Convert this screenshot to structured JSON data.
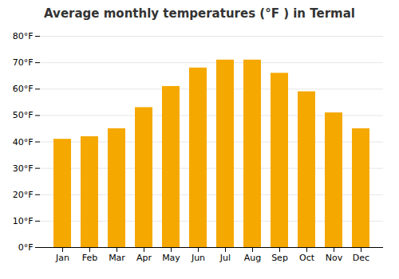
{
  "chart_data": {
    "type": "bar",
    "title": "Average monthly temperatures (°F ) in Termal",
    "categories": [
      "Jan",
      "Feb",
      "Mar",
      "Apr",
      "May",
      "Jun",
      "Jul",
      "Aug",
      "Sep",
      "Oct",
      "Nov",
      "Dec"
    ],
    "values": [
      41,
      42,
      45,
      53,
      61,
      68,
      71,
      71,
      66,
      59,
      51,
      45
    ],
    "color": "#F5A800",
    "ylim": [
      0,
      80
    ],
    "yticks": [
      {
        "value": 0,
        "label": "0°F"
      },
      {
        "value": 10,
        "label": "10°F"
      },
      {
        "value": 20,
        "label": "20°F"
      },
      {
        "value": 30,
        "label": "30°F"
      },
      {
        "value": 40,
        "label": "40°F"
      },
      {
        "value": 50,
        "label": "50°F"
      },
      {
        "value": 60,
        "label": "60°F"
      },
      {
        "value": 70,
        "label": "70°F"
      },
      {
        "value": 80,
        "label": "80°F"
      }
    ],
    "grid": true
  }
}
